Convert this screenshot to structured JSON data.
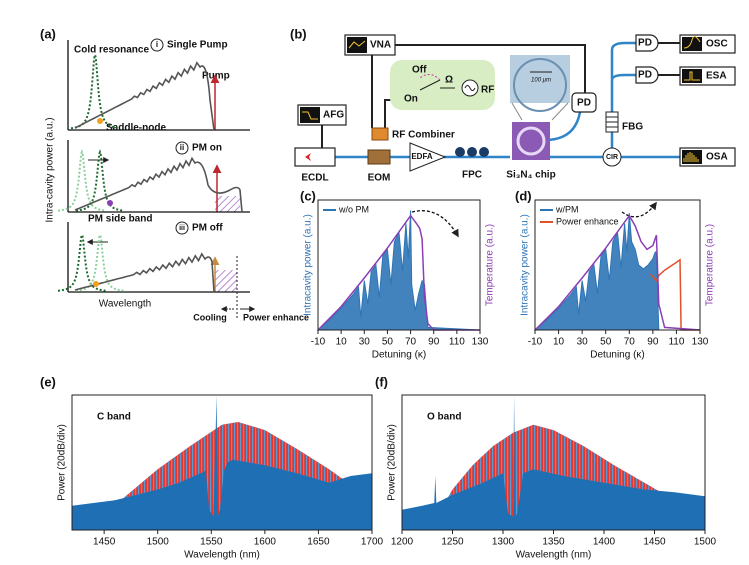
{
  "figure": {
    "a": {
      "label": "(a)",
      "cold_resonance": "Cold resonance",
      "steps": [
        {
          "num": "i",
          "text": "Single Pump"
        },
        {
          "num": "ii",
          "text": "PM on"
        },
        {
          "num": "iii",
          "text": "PM off"
        }
      ],
      "pump": "Pump",
      "saddle": "Saddle-node",
      "side_band": "PM side band",
      "xlabel": "Wavelength",
      "ylabel": "Intra-cavity power (a.u.)",
      "cooling": "Cooling",
      "enhance": "Power enhance"
    },
    "b": {
      "label": "(b)",
      "vna": "VNA",
      "afg": "AFG",
      "off": "Off",
      "on": "On",
      "omega": "Ω",
      "rf": "RF",
      "scale": "100 μm",
      "combiner": "RF Combiner",
      "pd": [
        "PD",
        "PD",
        "PD"
      ],
      "osc": "OSC",
      "esa": "ESA",
      "fbg": "FBG",
      "cir": "CIR",
      "osa": "OSA",
      "ecdl": "ECDL",
      "eom": "EOM",
      "edfa": "EDFA",
      "fpc": "FPC",
      "chip": "Si₃N₄ chip"
    }
  },
  "chart_data": [
    {
      "type": "line",
      "label": "(c)",
      "xlabel": "Detuning (κ)",
      "ylabel": "Intracavity power (a.u.)",
      "y2label": "Temperature (a.u.)",
      "xlim": [
        -10,
        130
      ],
      "xticks": [
        -10,
        10,
        30,
        50,
        70,
        90,
        110,
        130
      ],
      "ylim": [
        0,
        1
      ],
      "y2lim": [
        0,
        1
      ],
      "series": [
        {
          "name": "w/o PM",
          "color": "#2e75b6",
          "fill": true,
          "x": [
            -10,
            0,
            10,
            20,
            25,
            27,
            30,
            33,
            36,
            40,
            43,
            46,
            50,
            53,
            56,
            60,
            63,
            66,
            68,
            70,
            71,
            74,
            77,
            80,
            82,
            85,
            130
          ],
          "values": [
            0,
            0.08,
            0.17,
            0.27,
            0.33,
            0.1,
            0.38,
            0.2,
            0.45,
            0.5,
            0.25,
            0.57,
            0.62,
            0.35,
            0.68,
            0.75,
            0.45,
            0.82,
            0.55,
            0.92,
            0.35,
            0.15,
            0.28,
            0.38,
            0.35,
            0.02,
            0
          ]
        },
        {
          "color": "#8b3fb5",
          "axis": "y2",
          "x": [
            -10,
            10,
            30,
            50,
            70,
            75,
            78,
            80,
            82,
            85,
            90,
            130
          ],
          "values": [
            0,
            0.18,
            0.4,
            0.63,
            0.88,
            0.82,
            0.78,
            0.7,
            0.25,
            0.05,
            0,
            0
          ]
        }
      ]
    },
    {
      "type": "line",
      "label": "(d)",
      "xlabel": "Detuning (κ)",
      "ylabel": "Intracavity power (a.u.)",
      "y2label": "Temperature (a.u.)",
      "xlim": [
        -10,
        130
      ],
      "xticks": [
        -10,
        10,
        30,
        50,
        70,
        90,
        110,
        130
      ],
      "ylim": [
        0,
        1
      ],
      "y2lim": [
        0,
        1
      ],
      "series": [
        {
          "name": "w/PM",
          "color": "#2e75b6",
          "fill": true,
          "x": [
            -10,
            0,
            10,
            20,
            25,
            27,
            30,
            33,
            36,
            40,
            43,
            46,
            50,
            53,
            56,
            60,
            63,
            66,
            68,
            70,
            72,
            75,
            78,
            82,
            86,
            90,
            92,
            93,
            95,
            130
          ],
          "values": [
            0,
            0.08,
            0.17,
            0.27,
            0.33,
            0.12,
            0.38,
            0.22,
            0.45,
            0.5,
            0.28,
            0.57,
            0.62,
            0.38,
            0.68,
            0.75,
            0.48,
            0.82,
            0.6,
            0.9,
            0.68,
            0.62,
            0.5,
            0.47,
            0.5,
            0.55,
            0.6,
            0.6,
            0,
            0
          ]
        },
        {
          "name": "Power enhance",
          "color": "#e0502a",
          "x": [
            88,
            93,
            95,
            100,
            110,
            113,
            114,
            130
          ],
          "values": [
            0.43,
            0.38,
            0.42,
            0.46,
            0.52,
            0.54,
            0,
            0
          ]
        },
        {
          "color": "#8b3fb5",
          "axis": "y2",
          "x": [
            -10,
            10,
            30,
            50,
            70,
            75,
            80,
            85,
            90,
            93,
            95,
            100,
            130
          ],
          "values": [
            0,
            0.18,
            0.4,
            0.63,
            0.88,
            0.8,
            0.68,
            0.62,
            0.65,
            0.73,
            0.2,
            0.02,
            0
          ]
        }
      ]
    },
    {
      "type": "area",
      "label": "(e)",
      "annotation": "C band",
      "xlabel": "Wavelength (nm)",
      "ylabel": "Power (20dB/div)",
      "xlim": [
        1420,
        1700
      ],
      "xticks": [
        1450,
        1500,
        1550,
        1600,
        1650,
        1700
      ],
      "ylim": [
        0,
        100
      ],
      "series": [
        {
          "color": "#e8352b",
          "x": [
            1450,
            1470,
            1500,
            1530,
            1560,
            1575,
            1600,
            1630,
            1660,
            1690,
            1695
          ],
          "values": [
            10,
            25,
            45,
            62,
            78,
            80,
            74,
            60,
            45,
            28,
            10
          ]
        },
        {
          "color": "#1f6fb5",
          "x": [
            1420,
            1440,
            1460,
            1480,
            1500,
            1520,
            1540,
            1545,
            1548,
            1552,
            1555,
            1556,
            1558,
            1562,
            1565,
            1570,
            1600,
            1630,
            1660,
            1680,
            1700
          ],
          "values": [
            18,
            20,
            22,
            26,
            30,
            35,
            42,
            44,
            15,
            10,
            100,
            10,
            15,
            44,
            50,
            52,
            48,
            42,
            35,
            40,
            42
          ]
        }
      ]
    },
    {
      "type": "area",
      "label": "(f)",
      "annotation": "O band",
      "xlabel": "Wavelength (nm)",
      "ylabel": "Power (20dB/div)",
      "xlim": [
        1200,
        1500
      ],
      "xticks": [
        1200,
        1250,
        1300,
        1350,
        1400,
        1450,
        1500
      ],
      "ylim": [
        0,
        100
      ],
      "series": [
        {
          "color": "#e8352b",
          "x": [
            1235,
            1250,
            1270,
            1290,
            1310,
            1330,
            1350,
            1380,
            1410,
            1440,
            1470,
            1475
          ],
          "values": [
            10,
            30,
            48,
            62,
            72,
            78,
            74,
            62,
            48,
            35,
            22,
            10
          ]
        },
        {
          "color": "#1f6fb5",
          "x": [
            1200,
            1220,
            1232,
            1233,
            1234,
            1250,
            1280,
            1300,
            1305,
            1310,
            1311,
            1312,
            1314,
            1320,
            1330,
            1360,
            1400,
            1440,
            1470,
            1500
          ],
          "values": [
            15,
            18,
            20,
            40,
            20,
            26,
            35,
            42,
            12,
            10,
            100,
            10,
            12,
            42,
            45,
            40,
            35,
            30,
            28,
            25
          ]
        }
      ]
    }
  ]
}
